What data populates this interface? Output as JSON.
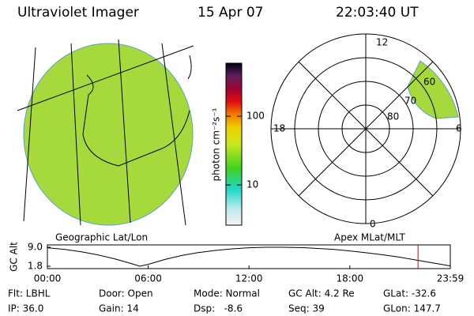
{
  "header": {
    "title": "Ultraviolet Imager",
    "date": "15 Apr 07",
    "time": "22:03:40 UT"
  },
  "colorbar": {
    "label": "photon cm⁻²s⁻¹",
    "scale": "log",
    "lim": [
      2.6,
      590
    ],
    "ticks": [
      10,
      100
    ]
  },
  "map_label": "Geographic Lat/Lon",
  "polar": {
    "label": "Apex MLat/MLT",
    "mlt_labels": {
      "noon": "12",
      "dusk": "18",
      "dawn": "6",
      "midnight": "0"
    },
    "lat_labels": [
      "60",
      "70",
      "80"
    ]
  },
  "chart_data": {
    "type": "line",
    "ylabel": "GC Alt",
    "ylim": [
      1.8,
      9.0
    ],
    "yticks": [
      {
        "value": 9.0,
        "label": "9.0"
      },
      1.8
    ],
    "xlim": [
      0,
      23.98
    ],
    "xticks": [
      {
        "value": 0,
        "label": "00:00"
      },
      {
        "value": 6,
        "label": "06:00"
      },
      {
        "value": 12,
        "label": "12:00"
      },
      {
        "value": 18,
        "label": "18:00"
      },
      {
        "value": 23.98,
        "label": "23:59"
      }
    ],
    "x": [
      0,
      1,
      2,
      3,
      4,
      5,
      5.5,
      6,
      7,
      8,
      9,
      10,
      11,
      12,
      13,
      14,
      15,
      16,
      17,
      18,
      19,
      20,
      21,
      22,
      23,
      23.98
    ],
    "series": [
      {
        "color": "#000000",
        "values": [
          8.8,
          8.2,
          7.3,
          6.1,
          4.6,
          2.8,
          1.8,
          2.5,
          4.4,
          5.9,
          7.0,
          7.8,
          8.4,
          8.8,
          9.0,
          9.0,
          8.9,
          8.6,
          8.2,
          7.6,
          6.9,
          6.1,
          5.2,
          4.1,
          3.0,
          1.9
        ]
      }
    ],
    "marker_x": 22.06,
    "marker_color": "#d00000"
  },
  "footer": {
    "rows": [
      [
        "Flt: LBHL",
        "Door: Open",
        "Mode: Normal",
        "GC Alt: 4.2 Re",
        "GLat: -32.6"
      ],
      [
        "IP: 36.0",
        "Gain: 14",
        "Dsp:   -8.6",
        "Seq: 39",
        "GLon: 147.7"
      ]
    ]
  }
}
